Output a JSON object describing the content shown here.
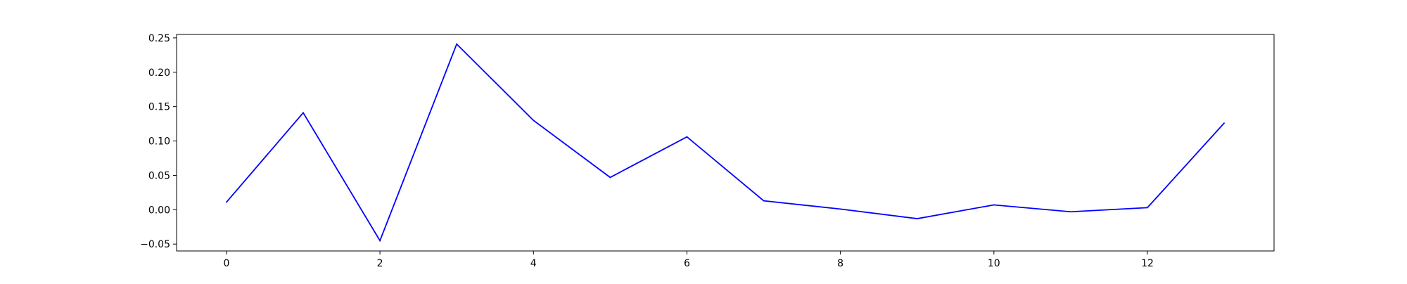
{
  "chart_data": {
    "type": "line",
    "title": "",
    "xlabel": "",
    "ylabel": "",
    "grid": false,
    "xlim": [
      -0.65,
      13.65
    ],
    "ylim": [
      -0.06,
      0.255
    ],
    "x_ticks": [
      0,
      2,
      4,
      6,
      8,
      10,
      12
    ],
    "x_tick_labels": [
      "0",
      "2",
      "4",
      "6",
      "8",
      "10",
      "12"
    ],
    "y_ticks": [
      -0.05,
      0.0,
      0.05,
      0.1,
      0.15,
      0.2,
      0.25
    ],
    "y_tick_labels": [
      "−0.05",
      "0.00",
      "0.05",
      "0.10",
      "0.15",
      "0.20",
      "0.25"
    ],
    "series": [
      {
        "color": "#0000ff",
        "x": [
          0,
          1,
          2,
          3,
          4,
          5,
          6,
          7,
          8,
          9,
          10,
          11,
          12,
          13
        ],
        "y": [
          0.011,
          0.141,
          -0.045,
          0.241,
          0.13,
          0.047,
          0.106,
          0.013,
          0.001,
          -0.013,
          0.007,
          -0.003,
          0.003,
          0.126
        ]
      }
    ]
  }
}
